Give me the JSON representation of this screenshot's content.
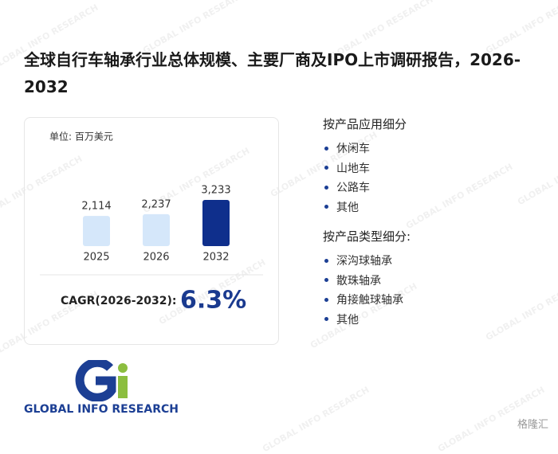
{
  "title": "全球自行车轴承行业总体规模、主要厂商及IPO上市调研报告，2026-2032",
  "chart_data": {
    "type": "bar",
    "unit_label": "单位: 百万美元",
    "categories": [
      "2025",
      "2026",
      "2032"
    ],
    "values": [
      2114,
      2237,
      3233
    ],
    "value_labels": [
      "2,114",
      "2,237",
      "3,233"
    ],
    "colors": [
      "#d5e7fa",
      "#d5e7fa",
      "#0f2f8c"
    ],
    "cagr_label": "CAGR(2026-2032):",
    "cagr_value": "6.3%"
  },
  "segments": [
    {
      "heading": "按产品应用细分",
      "items": [
        "休闲车",
        "山地车",
        "公路车",
        "其他"
      ]
    },
    {
      "heading": "按产品类型细分:",
      "items": [
        "深沟球轴承",
        "散珠轴承",
        "角接触球轴承",
        "其他"
      ]
    }
  ],
  "logo_text": "GLOBAL INFO RESEARCH",
  "watermark": "GLOBAL INFO RESEARCH",
  "corner_mark": "格隆汇"
}
